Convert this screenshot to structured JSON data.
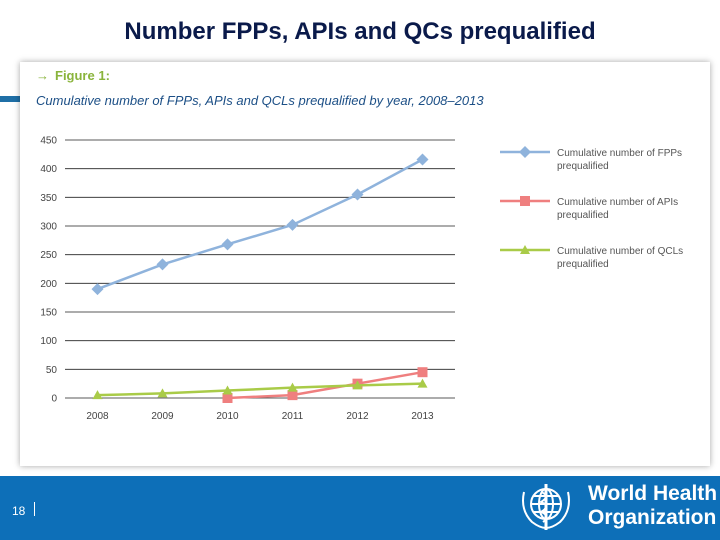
{
  "slide": {
    "title": "Number FPPs, APIs and QCs prequalified",
    "page_number": "18"
  },
  "figure": {
    "label": "Figure 1:",
    "caption": "Cumulative number of FPPs, APIs and QCLs prequalified by year, 2008–2013"
  },
  "footer": {
    "org_line1": "World Health",
    "org_line2": "Organization",
    "bar_color": "#0d6fb8"
  },
  "chart_data": {
    "type": "line",
    "x": [
      2008,
      2009,
      2010,
      2011,
      2012,
      2013
    ],
    "ylim": [
      0,
      450
    ],
    "yticks": [
      0,
      50,
      100,
      150,
      200,
      250,
      300,
      350,
      400,
      450
    ],
    "grid": true,
    "legend_position": "right",
    "series": [
      {
        "name": "Cumulative number of FPPs prequalified",
        "marker": "diamond",
        "color": "#8fb3dc",
        "values": [
          190,
          233,
          268,
          302,
          355,
          416
        ]
      },
      {
        "name": "Cumulative number of APIs prequalified",
        "marker": "square",
        "color": "#ef7f7f",
        "values": [
          null,
          null,
          0,
          5,
          25,
          45
        ]
      },
      {
        "name": "Cumulative number of QCLs prequalified",
        "marker": "triangle",
        "color": "#a9cb48",
        "values": [
          5,
          8,
          13,
          18,
          22,
          25
        ]
      }
    ]
  }
}
